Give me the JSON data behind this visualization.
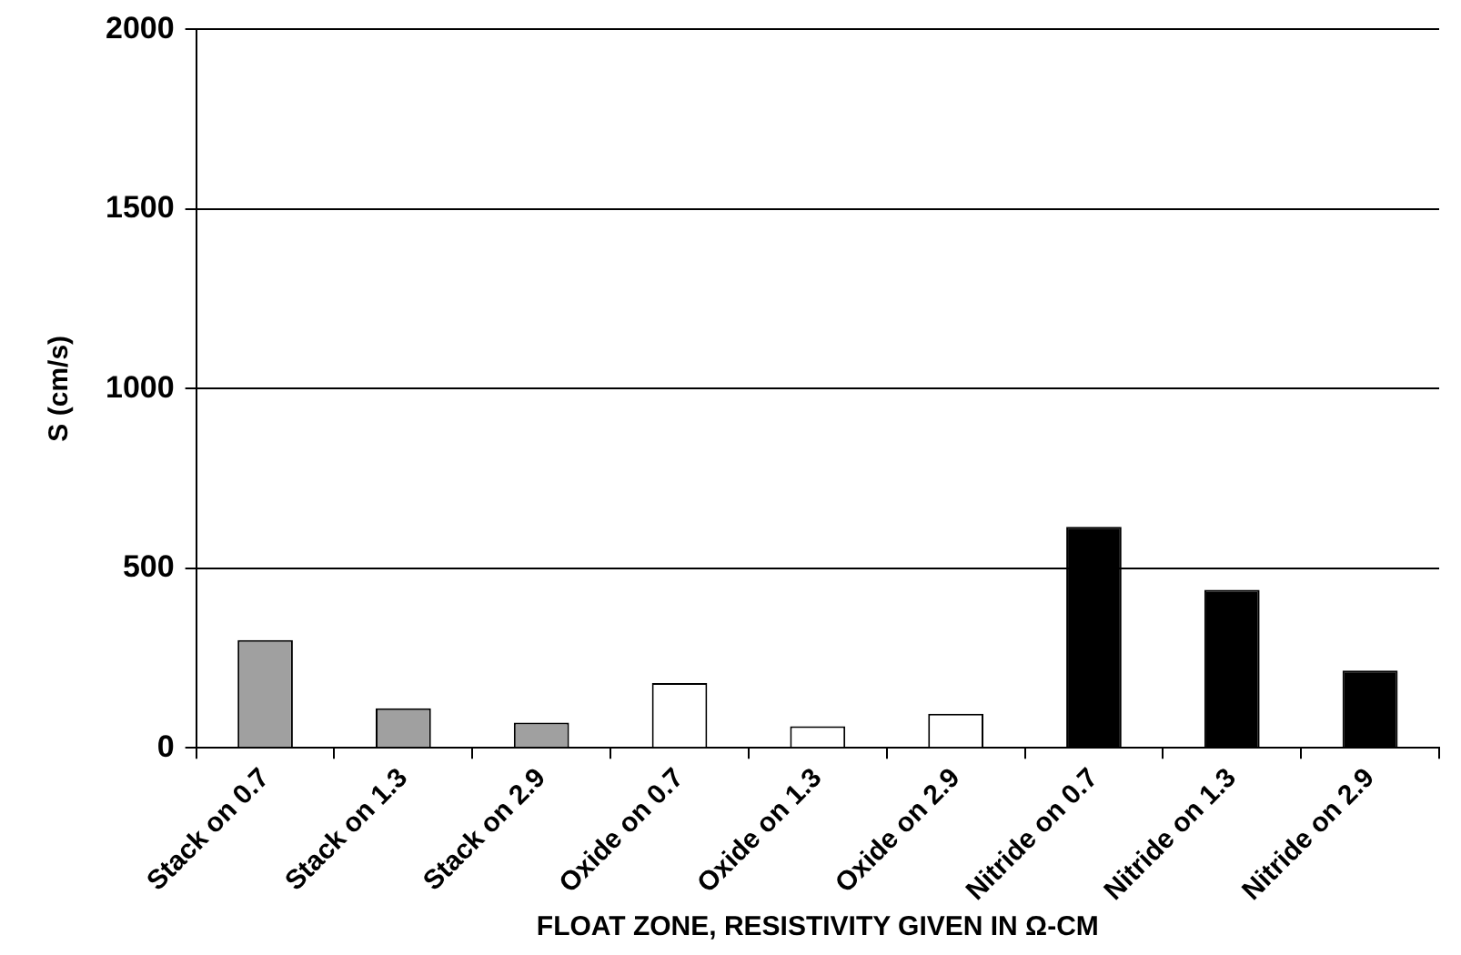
{
  "chart_data": {
    "type": "bar",
    "xlabel": "FLOAT ZONE, RESISTIVITY GIVEN IN Ω-CM",
    "ylabel": "S (cm/s)",
    "categories": [
      "Stack on 0.7",
      "Stack on 1.3",
      "Stack on 2.9",
      "Oxide on 0.7",
      "Oxide on 1.3",
      "Oxide on 2.9",
      "Nitride on 0.7",
      "Nitride on 1.3",
      "Nitride on 2.9"
    ],
    "values": [
      300,
      110,
      70,
      180,
      60,
      95,
      615,
      440,
      215
    ],
    "colors": [
      "#a0a0a0",
      "#a0a0a0",
      "#a0a0a0",
      "#ffffff",
      "#ffffff",
      "#ffffff",
      "#000000",
      "#000000",
      "#000000"
    ],
    "ylim": [
      0,
      2000
    ],
    "yticks": [
      0,
      500,
      1000,
      1500,
      2000
    ],
    "grid": "y"
  }
}
